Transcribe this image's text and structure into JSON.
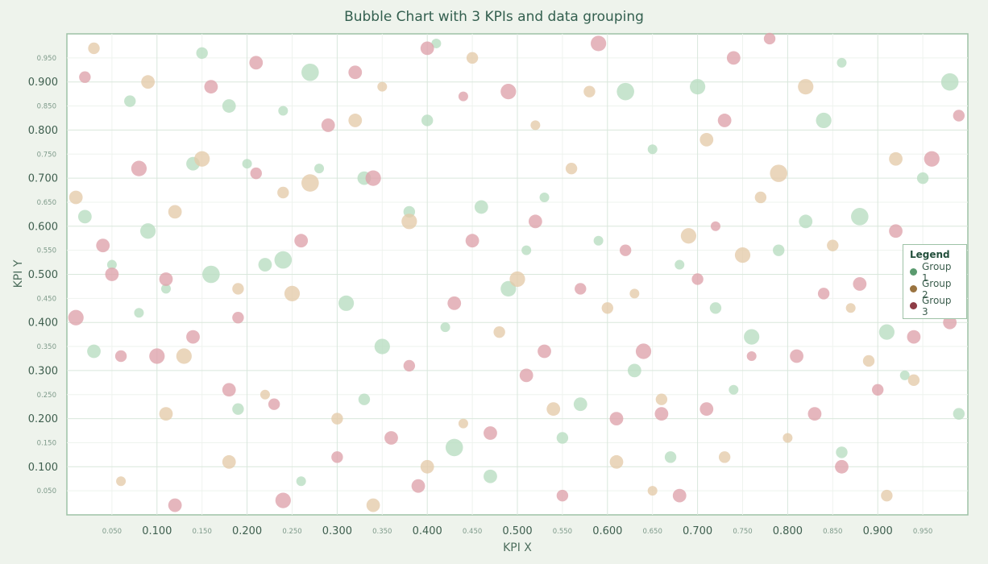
{
  "chart_data": {
    "type": "scatter",
    "subtype": "bubble",
    "title": "Bubble Chart with 3 KPIs and data grouping",
    "xlabel": "KPI X",
    "ylabel": "KPI Y",
    "xlim": [
      0.0,
      1.0
    ],
    "ylim": [
      0.0,
      1.0
    ],
    "x_major_ticks": [
      "0.100",
      "0.200",
      "0.300",
      "0.400",
      "0.500",
      "0.600",
      "0.700",
      "0.800",
      "0.900"
    ],
    "x_minor_ticks": [
      "0.050",
      "0.150",
      "0.250",
      "0.350",
      "0.450",
      "0.550",
      "0.650",
      "0.750",
      "0.850",
      "0.950"
    ],
    "y_major_ticks": [
      "0.100",
      "0.200",
      "0.300",
      "0.400",
      "0.500",
      "0.600",
      "0.700",
      "0.800",
      "0.900"
    ],
    "y_minor_ticks": [
      "0.050",
      "0.150",
      "0.250",
      "0.350",
      "0.450",
      "0.550",
      "0.650",
      "0.750",
      "0.850",
      "0.950"
    ],
    "grid": true,
    "legend": {
      "title": "Legend",
      "placement": "right",
      "entries": [
        "Group 1",
        "Group 2",
        "Group 3"
      ]
    },
    "series": [
      {
        "name": "Group 1",
        "color": "#5a9a6e",
        "fill": "#b7dcc0",
        "points": [
          [
            0.02,
            0.62,
            0.07
          ],
          [
            0.05,
            0.52,
            0.05
          ],
          [
            0.07,
            0.86,
            0.06
          ],
          [
            0.09,
            0.59,
            0.08
          ],
          [
            0.11,
            0.47,
            0.05
          ],
          [
            0.14,
            0.73,
            0.07
          ],
          [
            0.16,
            0.5,
            0.09
          ],
          [
            0.18,
            0.85,
            0.07
          ],
          [
            0.2,
            0.73,
            0.05
          ],
          [
            0.22,
            0.52,
            0.07
          ],
          [
            0.24,
            0.53,
            0.09
          ],
          [
            0.24,
            0.84,
            0.05
          ],
          [
            0.27,
            0.92,
            0.09
          ],
          [
            0.28,
            0.72,
            0.05
          ],
          [
            0.31,
            0.44,
            0.08
          ],
          [
            0.33,
            0.7,
            0.07
          ],
          [
            0.35,
            0.35,
            0.08
          ],
          [
            0.38,
            0.63,
            0.06
          ],
          [
            0.4,
            0.82,
            0.06
          ],
          [
            0.42,
            0.39,
            0.05
          ],
          [
            0.43,
            0.14,
            0.09
          ],
          [
            0.46,
            0.64,
            0.07
          ],
          [
            0.49,
            0.47,
            0.08
          ],
          [
            0.51,
            0.55,
            0.05
          ],
          [
            0.53,
            0.66,
            0.05
          ],
          [
            0.55,
            0.16,
            0.06
          ],
          [
            0.59,
            0.57,
            0.05
          ],
          [
            0.62,
            0.88,
            0.09
          ],
          [
            0.63,
            0.3,
            0.07
          ],
          [
            0.65,
            0.76,
            0.05
          ],
          [
            0.68,
            0.52,
            0.05
          ],
          [
            0.7,
            0.89,
            0.08
          ],
          [
            0.72,
            0.43,
            0.06
          ],
          [
            0.74,
            0.26,
            0.05
          ],
          [
            0.76,
            0.37,
            0.08
          ],
          [
            0.79,
            0.55,
            0.06
          ],
          [
            0.82,
            0.61,
            0.07
          ],
          [
            0.84,
            0.82,
            0.08
          ],
          [
            0.86,
            0.13,
            0.06
          ],
          [
            0.88,
            0.62,
            0.09
          ],
          [
            0.91,
            0.38,
            0.08
          ],
          [
            0.93,
            0.29,
            0.05
          ],
          [
            0.95,
            0.7,
            0.06
          ],
          [
            0.98,
            0.9,
            0.09
          ],
          [
            0.99,
            0.21,
            0.06
          ],
          [
            0.03,
            0.34,
            0.07
          ],
          [
            0.08,
            0.42,
            0.05
          ],
          [
            0.19,
            0.22,
            0.06
          ],
          [
            0.33,
            0.24,
            0.06
          ],
          [
            0.41,
            0.98,
            0.05
          ],
          [
            0.57,
            0.23,
            0.07
          ],
          [
            0.67,
            0.12,
            0.06
          ],
          [
            0.86,
            0.94,
            0.05
          ],
          [
            0.15,
            0.96,
            0.06
          ],
          [
            0.47,
            0.08,
            0.07
          ],
          [
            0.26,
            0.07,
            0.05
          ]
        ]
      },
      {
        "name": "Group 2",
        "color": "#9a7340",
        "fill": "#e4cba9",
        "points": [
          [
            0.01,
            0.66,
            0.07
          ],
          [
            0.03,
            0.97,
            0.06
          ],
          [
            0.09,
            0.9,
            0.07
          ],
          [
            0.11,
            0.21,
            0.07
          ],
          [
            0.12,
            0.63,
            0.07
          ],
          [
            0.13,
            0.33,
            0.08
          ],
          [
            0.15,
            0.74,
            0.08
          ],
          [
            0.19,
            0.47,
            0.06
          ],
          [
            0.22,
            0.25,
            0.05
          ],
          [
            0.24,
            0.67,
            0.06
          ],
          [
            0.25,
            0.46,
            0.08
          ],
          [
            0.27,
            0.69,
            0.09
          ],
          [
            0.3,
            0.2,
            0.06
          ],
          [
            0.32,
            0.82,
            0.07
          ],
          [
            0.35,
            0.89,
            0.05
          ],
          [
            0.38,
            0.61,
            0.08
          ],
          [
            0.4,
            0.1,
            0.07
          ],
          [
            0.44,
            0.19,
            0.05
          ],
          [
            0.48,
            0.38,
            0.06
          ],
          [
            0.5,
            0.49,
            0.08
          ],
          [
            0.52,
            0.81,
            0.05
          ],
          [
            0.54,
            0.22,
            0.07
          ],
          [
            0.56,
            0.72,
            0.06
          ],
          [
            0.6,
            0.43,
            0.06
          ],
          [
            0.61,
            0.11,
            0.07
          ],
          [
            0.63,
            0.46,
            0.05
          ],
          [
            0.66,
            0.24,
            0.06
          ],
          [
            0.69,
            0.58,
            0.08
          ],
          [
            0.71,
            0.78,
            0.07
          ],
          [
            0.73,
            0.12,
            0.06
          ],
          [
            0.75,
            0.54,
            0.08
          ],
          [
            0.77,
            0.66,
            0.06
          ],
          [
            0.79,
            0.71,
            0.09
          ],
          [
            0.82,
            0.89,
            0.08
          ],
          [
            0.85,
            0.56,
            0.06
          ],
          [
            0.87,
            0.43,
            0.05
          ],
          [
            0.89,
            0.32,
            0.06
          ],
          [
            0.92,
            0.74,
            0.07
          ],
          [
            0.94,
            0.28,
            0.06
          ],
          [
            0.96,
            0.49,
            0.07
          ],
          [
            0.34,
            0.02,
            0.07
          ],
          [
            0.58,
            0.88,
            0.06
          ],
          [
            0.8,
            0.16,
            0.05
          ],
          [
            0.18,
            0.11,
            0.07
          ],
          [
            0.06,
            0.07,
            0.05
          ],
          [
            0.45,
            0.95,
            0.06
          ],
          [
            0.65,
            0.05,
            0.05
          ],
          [
            0.91,
            0.04,
            0.06
          ]
        ]
      },
      {
        "name": "Group 3",
        "color": "#8e3c46",
        "fill": "#dea2ab",
        "points": [
          [
            0.01,
            0.41,
            0.08
          ],
          [
            0.02,
            0.91,
            0.06
          ],
          [
            0.04,
            0.56,
            0.07
          ],
          [
            0.05,
            0.5,
            0.07
          ],
          [
            0.08,
            0.72,
            0.08
          ],
          [
            0.1,
            0.33,
            0.08
          ],
          [
            0.11,
            0.49,
            0.07
          ],
          [
            0.12,
            0.02,
            0.07
          ],
          [
            0.14,
            0.37,
            0.07
          ],
          [
            0.16,
            0.89,
            0.07
          ],
          [
            0.18,
            0.26,
            0.07
          ],
          [
            0.21,
            0.94,
            0.07
          ],
          [
            0.21,
            0.71,
            0.06
          ],
          [
            0.23,
            0.23,
            0.06
          ],
          [
            0.24,
            0.03,
            0.08
          ],
          [
            0.26,
            0.57,
            0.07
          ],
          [
            0.29,
            0.81,
            0.07
          ],
          [
            0.32,
            0.92,
            0.07
          ],
          [
            0.34,
            0.7,
            0.08
          ],
          [
            0.36,
            0.16,
            0.07
          ],
          [
            0.38,
            0.31,
            0.06
          ],
          [
            0.39,
            0.06,
            0.07
          ],
          [
            0.4,
            0.97,
            0.07
          ],
          [
            0.43,
            0.44,
            0.07
          ],
          [
            0.45,
            0.57,
            0.07
          ],
          [
            0.47,
            0.17,
            0.07
          ],
          [
            0.49,
            0.88,
            0.08
          ],
          [
            0.51,
            0.29,
            0.07
          ],
          [
            0.53,
            0.34,
            0.07
          ],
          [
            0.55,
            0.04,
            0.06
          ],
          [
            0.57,
            0.47,
            0.06
          ],
          [
            0.59,
            0.98,
            0.08
          ],
          [
            0.61,
            0.2,
            0.07
          ],
          [
            0.62,
            0.55,
            0.06
          ],
          [
            0.64,
            0.34,
            0.08
          ],
          [
            0.66,
            0.21,
            0.07
          ],
          [
            0.68,
            0.04,
            0.07
          ],
          [
            0.7,
            0.49,
            0.06
          ],
          [
            0.71,
            0.22,
            0.07
          ],
          [
            0.73,
            0.82,
            0.07
          ],
          [
            0.74,
            0.95,
            0.07
          ],
          [
            0.76,
            0.33,
            0.05
          ],
          [
            0.78,
            0.99,
            0.06
          ],
          [
            0.81,
            0.33,
            0.07
          ],
          [
            0.83,
            0.21,
            0.07
          ],
          [
            0.84,
            0.46,
            0.06
          ],
          [
            0.86,
            0.1,
            0.07
          ],
          [
            0.88,
            0.48,
            0.07
          ],
          [
            0.9,
            0.26,
            0.06
          ],
          [
            0.92,
            0.59,
            0.07
          ],
          [
            0.94,
            0.37,
            0.07
          ],
          [
            0.96,
            0.74,
            0.08
          ],
          [
            0.98,
            0.4,
            0.07
          ],
          [
            0.99,
            0.83,
            0.06
          ],
          [
            0.3,
            0.12,
            0.06
          ],
          [
            0.52,
            0.61,
            0.07
          ],
          [
            0.06,
            0.33,
            0.06
          ],
          [
            0.72,
            0.6,
            0.05
          ],
          [
            0.19,
            0.41,
            0.06
          ],
          [
            0.44,
            0.87,
            0.05
          ]
        ]
      }
    ]
  }
}
